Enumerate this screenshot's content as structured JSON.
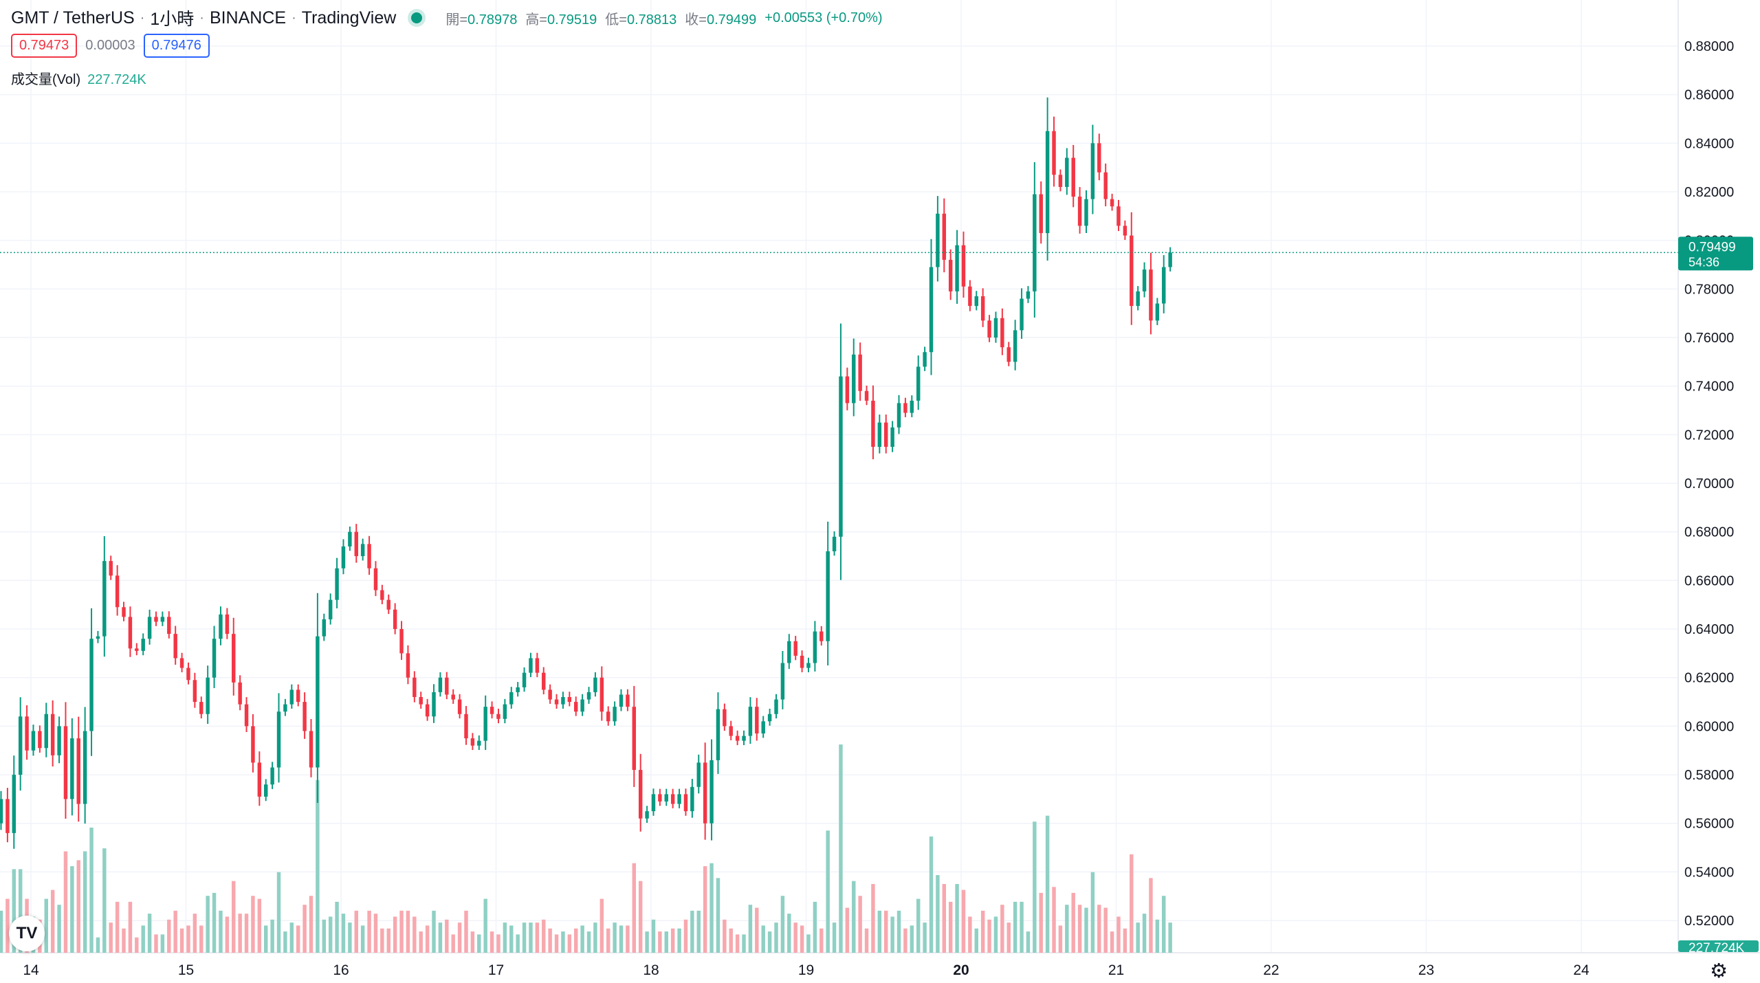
{
  "header": {
    "symbol": "GMT / TetherUS",
    "interval": "1小時",
    "exchange": "BINANCE",
    "source": "TradingView",
    "open_label": "開=",
    "open": "0.78978",
    "high_label": "高=",
    "high": "0.79519",
    "low_label": "低=",
    "low": "0.78813",
    "close_label": "收=",
    "close": "0.79499",
    "change": "+0.00553 (+0.70%)"
  },
  "quote": {
    "sell": "0.79473",
    "spread": "0.00003",
    "buy": "0.79476"
  },
  "volume": {
    "label": "成交量(Vol)",
    "value": "227.724K"
  },
  "price_tag": {
    "price": "0.79499",
    "countdown": "54:36"
  },
  "colors": {
    "up": "#089981",
    "down": "#f23645",
    "up_volume": "#8fd0c4",
    "down_volume": "#f7a8ae",
    "grid": "#f0f3fa",
    "last_price_line": "#089981"
  },
  "icons": {
    "logo": "tradingview-logo-icon",
    "settings": "gear-icon"
  },
  "chart_data": {
    "type": "candlestick",
    "y_axis": {
      "min": 0.51,
      "max": 0.88,
      "step": 0.02,
      "ticks": [
        "0.88000",
        "0.86000",
        "0.84000",
        "0.82000",
        "0.80000",
        "0.78000",
        "0.76000",
        "0.74000",
        "0.72000",
        "0.70000",
        "0.68000",
        "0.66000",
        "0.64000",
        "0.62000",
        "0.60000",
        "0.58000",
        "0.56000",
        "0.54000",
        "0.52000"
      ]
    },
    "x_axis": {
      "ticks": [
        "14",
        "15",
        "16",
        "17",
        "18",
        "19",
        "20",
        "21",
        "22",
        "23",
        "24"
      ],
      "bold_ticks": [
        "20"
      ]
    },
    "last_price": 0.79499,
    "series": [
      {
        "name": "GMT / TetherUS",
        "values": [
          [
            0.56,
            0.57
          ],
          [
            0.57,
            0.556
          ],
          [
            0.556,
            0.58
          ],
          [
            0.58,
            0.604
          ],
          [
            0.604,
            0.59
          ],
          [
            0.59,
            0.598
          ],
          [
            0.598,
            0.591
          ],
          [
            0.591,
            0.605
          ],
          [
            0.605,
            0.588
          ],
          [
            0.588,
            0.6
          ],
          [
            0.6,
            0.57
          ],
          [
            0.57,
            0.595
          ],
          [
            0.595,
            0.568
          ],
          [
            0.568,
            0.598
          ],
          [
            0.598,
            0.636
          ],
          [
            0.636,
            0.637
          ],
          [
            0.637,
            0.668
          ],
          [
            0.668,
            0.662
          ],
          [
            0.662,
            0.649
          ],
          [
            0.649,
            0.645
          ],
          [
            0.645,
            0.632
          ],
          [
            0.632,
            0.631
          ],
          [
            0.631,
            0.636
          ],
          [
            0.636,
            0.645
          ],
          [
            0.645,
            0.643
          ],
          [
            0.643,
            0.645
          ],
          [
            0.645,
            0.638
          ],
          [
            0.638,
            0.628
          ],
          [
            0.628,
            0.624
          ],
          [
            0.624,
            0.619
          ],
          [
            0.619,
            0.61
          ],
          [
            0.61,
            0.605
          ],
          [
            0.605,
            0.62
          ],
          [
            0.62,
            0.636
          ],
          [
            0.636,
            0.646
          ],
          [
            0.646,
            0.638
          ],
          [
            0.638,
            0.618
          ],
          [
            0.618,
            0.609
          ],
          [
            0.609,
            0.6
          ],
          [
            0.6,
            0.585
          ],
          [
            0.585,
            0.571
          ],
          [
            0.571,
            0.576
          ],
          [
            0.576,
            0.583
          ],
          [
            0.583,
            0.606
          ],
          [
            0.606,
            0.609
          ],
          [
            0.609,
            0.615
          ],
          [
            0.615,
            0.61
          ],
          [
            0.61,
            0.598
          ],
          [
            0.598,
            0.583
          ],
          [
            0.583,
            0.637
          ],
          [
            0.637,
            0.644
          ],
          [
            0.644,
            0.652
          ],
          [
            0.652,
            0.665
          ],
          [
            0.665,
            0.674
          ],
          [
            0.674,
            0.68
          ],
          [
            0.68,
            0.67
          ],
          [
            0.67,
            0.675
          ],
          [
            0.675,
            0.665
          ],
          [
            0.665,
            0.656
          ],
          [
            0.656,
            0.652
          ],
          [
            0.652,
            0.648
          ],
          [
            0.648,
            0.64
          ],
          [
            0.64,
            0.63
          ],
          [
            0.63,
            0.62
          ],
          [
            0.62,
            0.612
          ],
          [
            0.612,
            0.609
          ],
          [
            0.609,
            0.604
          ],
          [
            0.604,
            0.614
          ],
          [
            0.614,
            0.62
          ],
          [
            0.62,
            0.613
          ],
          [
            0.613,
            0.611
          ],
          [
            0.611,
            0.605
          ],
          [
            0.605,
            0.595
          ],
          [
            0.595,
            0.592
          ],
          [
            0.592,
            0.594
          ],
          [
            0.594,
            0.608
          ],
          [
            0.608,
            0.605
          ],
          [
            0.605,
            0.603
          ],
          [
            0.603,
            0.609
          ],
          [
            0.609,
            0.614
          ],
          [
            0.614,
            0.616
          ],
          [
            0.616,
            0.622
          ],
          [
            0.622,
            0.628
          ],
          [
            0.628,
            0.622
          ],
          [
            0.622,
            0.615
          ],
          [
            0.615,
            0.611
          ],
          [
            0.611,
            0.609
          ],
          [
            0.609,
            0.612
          ],
          [
            0.612,
            0.61
          ],
          [
            0.61,
            0.606
          ],
          [
            0.606,
            0.611
          ],
          [
            0.611,
            0.614
          ],
          [
            0.614,
            0.62
          ],
          [
            0.62,
            0.606
          ],
          [
            0.606,
            0.602
          ],
          [
            0.602,
            0.608
          ],
          [
            0.608,
            0.613
          ],
          [
            0.613,
            0.608
          ],
          [
            0.608,
            0.582
          ],
          [
            0.582,
            0.562
          ],
          [
            0.562,
            0.565
          ],
          [
            0.565,
            0.572
          ],
          [
            0.572,
            0.569
          ],
          [
            0.569,
            0.572
          ],
          [
            0.572,
            0.568
          ],
          [
            0.568,
            0.572
          ],
          [
            0.572,
            0.565
          ],
          [
            0.565,
            0.575
          ],
          [
            0.575,
            0.585
          ],
          [
            0.585,
            0.56
          ],
          [
            0.56,
            0.586
          ],
          [
            0.586,
            0.607
          ],
          [
            0.607,
            0.6
          ],
          [
            0.6,
            0.596
          ],
          [
            0.596,
            0.594
          ],
          [
            0.594,
            0.596
          ],
          [
            0.596,
            0.608
          ],
          [
            0.608,
            0.597
          ],
          [
            0.597,
            0.602
          ],
          [
            0.602,
            0.605
          ],
          [
            0.605,
            0.611
          ],
          [
            0.611,
            0.626
          ],
          [
            0.626,
            0.635
          ],
          [
            0.635,
            0.629
          ],
          [
            0.629,
            0.624
          ],
          [
            0.624,
            0.626
          ],
          [
            0.626,
            0.639
          ],
          [
            0.639,
            0.635
          ],
          [
            0.635,
            0.672
          ],
          [
            0.672,
            0.678
          ],
          [
            0.678,
            0.744
          ],
          [
            0.744,
            0.733
          ],
          [
            0.733,
            0.753
          ],
          [
            0.753,
            0.738
          ],
          [
            0.738,
            0.734
          ],
          [
            0.734,
            0.715
          ],
          [
            0.715,
            0.725
          ],
          [
            0.725,
            0.715
          ],
          [
            0.715,
            0.723
          ],
          [
            0.723,
            0.733
          ],
          [
            0.733,
            0.729
          ],
          [
            0.729,
            0.734
          ],
          [
            0.734,
            0.748
          ],
          [
            0.748,
            0.754
          ],
          [
            0.754,
            0.789
          ],
          [
            0.789,
            0.811
          ],
          [
            0.811,
            0.792
          ],
          [
            0.792,
            0.779
          ],
          [
            0.779,
            0.798
          ],
          [
            0.798,
            0.781
          ],
          [
            0.781,
            0.773
          ],
          [
            0.773,
            0.777
          ],
          [
            0.777,
            0.767
          ],
          [
            0.767,
            0.76
          ],
          [
            0.76,
            0.768
          ],
          [
            0.768,
            0.756
          ],
          [
            0.756,
            0.75
          ],
          [
            0.75,
            0.763
          ],
          [
            0.763,
            0.776
          ],
          [
            0.776,
            0.779
          ],
          [
            0.779,
            0.819
          ],
          [
            0.819,
            0.803
          ],
          [
            0.803,
            0.845
          ],
          [
            0.845,
            0.827
          ],
          [
            0.827,
            0.822
          ],
          [
            0.822,
            0.834
          ],
          [
            0.834,
            0.818
          ],
          [
            0.818,
            0.806
          ],
          [
            0.806,
            0.817
          ],
          [
            0.817,
            0.84
          ],
          [
            0.84,
            0.828
          ],
          [
            0.828,
            0.817
          ],
          [
            0.817,
            0.814
          ],
          [
            0.814,
            0.806
          ],
          [
            0.806,
            0.802
          ],
          [
            0.802,
            0.773
          ],
          [
            0.773,
            0.779
          ],
          [
            0.779,
            0.788
          ],
          [
            0.788,
            0.767
          ],
          [
            0.767,
            0.774
          ],
          [
            0.774,
            0.789
          ],
          [
            0.789,
            0.79499
          ]
        ]
      }
    ]
  }
}
